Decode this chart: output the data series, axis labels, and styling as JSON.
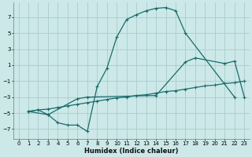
{
  "xlabel": "Humidex (Indice chaleur)",
  "xlim": [
    -0.5,
    23.5
  ],
  "ylim": [
    -8.2,
    8.8
  ],
  "background_color": "#cce8e8",
  "grid_color": "#aacccc",
  "line_color": "#1a6b6b",
  "line1_x": [
    1,
    2,
    3,
    4,
    5,
    6,
    7,
    8,
    9,
    10,
    11,
    12,
    13,
    14,
    15,
    16,
    17,
    22
  ],
  "line1_y": [
    -4.8,
    -4.6,
    -5.2,
    -6.2,
    -6.5,
    -6.5,
    -7.3,
    -1.7,
    0.6,
    4.5,
    6.7,
    7.3,
    7.8,
    8.1,
    8.2,
    7.8,
    5.0,
    -3.0
  ],
  "line2_x": [
    1,
    2,
    3,
    4,
    5,
    6,
    7,
    8,
    9,
    10,
    11,
    12,
    13,
    14,
    15,
    16,
    17,
    18,
    19,
    20,
    21,
    22,
    23
  ],
  "line2_y": [
    -4.8,
    -4.6,
    -4.5,
    -4.3,
    -4.1,
    -3.9,
    -3.7,
    -3.5,
    -3.3,
    -3.1,
    -3.0,
    -2.8,
    -2.7,
    -2.5,
    -2.3,
    -2.2,
    -2.0,
    -1.8,
    -1.6,
    -1.5,
    -1.3,
    -1.2,
    -1.0
  ],
  "line3_x": [
    1,
    3,
    6,
    7,
    14,
    17,
    18,
    21,
    22,
    23
  ],
  "line3_y": [
    -4.8,
    -5.2,
    -3.2,
    -3.0,
    -2.8,
    1.4,
    1.9,
    1.2,
    1.5,
    -3.0
  ],
  "yticks": [
    -7,
    -5,
    -3,
    -1,
    1,
    3,
    5,
    7
  ],
  "xticks": [
    0,
    1,
    2,
    3,
    4,
    5,
    6,
    7,
    8,
    9,
    10,
    11,
    12,
    13,
    14,
    15,
    16,
    17,
    18,
    19,
    20,
    21,
    22,
    23
  ],
  "marker": "+",
  "markersize": 3.5,
  "linewidth": 0.9
}
